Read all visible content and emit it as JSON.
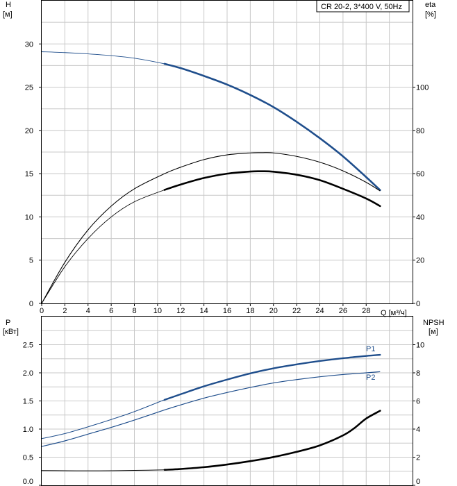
{
  "title": "CR 20-2, 3*400 V, 50Hz",
  "colors": {
    "grid": "#c8c8c8",
    "frame": "#000000",
    "head": "#1f4e8c",
    "power": "#1f4e8c",
    "efficiency": "#000000",
    "npsh": "#000000"
  },
  "chart_data": [
    {
      "type": "line",
      "name": "upper",
      "title": "CR 20-2, 3*400 V, 50Hz",
      "xlabel": "Q [м³/ч]",
      "ylabel": "H",
      "ylabel_unit": "[м]",
      "y2label": "eta",
      "y2label_unit": "[%]",
      "xlim": [
        0,
        32
      ],
      "ylim": [
        0,
        35
      ],
      "y2lim": [
        0,
        140
      ],
      "x_ticks": [
        "0",
        "2",
        "4",
        "6",
        "8",
        "10",
        "12",
        "14",
        "16",
        "18",
        "20",
        "22",
        "24",
        "26",
        "28"
      ],
      "y_ticks": [
        "0",
        "5",
        "10",
        "15",
        "20",
        "25",
        "30"
      ],
      "y2_ticks": [
        "0",
        "20",
        "40",
        "60",
        "80",
        "100"
      ],
      "grid": true,
      "series": [
        {
          "key": "head",
          "axis": "left",
          "x": [
            0,
            2,
            4,
            6,
            8,
            10.6,
            12,
            14,
            16,
            18,
            20,
            22,
            24,
            26,
            28,
            29.2
          ],
          "y": [
            29.1,
            29.0,
            28.85,
            28.65,
            28.35,
            27.7,
            27.2,
            26.3,
            25.3,
            24.1,
            22.7,
            21.0,
            19.1,
            17.0,
            14.6,
            13.1
          ],
          "thick_from": 10.6
        },
        {
          "key": "eta_outer",
          "axis": "right",
          "x": [
            0,
            2,
            4,
            6,
            8,
            10.6,
            12,
            14,
            16,
            18,
            19,
            20,
            22,
            24,
            26,
            28,
            29.2
          ],
          "y": [
            0,
            19,
            34,
            45,
            53,
            60,
            63,
            66.5,
            68.7,
            69.6,
            69.7,
            69.6,
            68.0,
            65.3,
            61.3,
            56.0,
            52.0
          ],
          "thick_from": 10.6,
          "thick": false
        },
        {
          "key": "eta_inner",
          "axis": "right",
          "x": [
            0,
            2,
            4,
            6,
            8,
            10.6,
            12,
            14,
            16,
            18,
            19,
            20,
            22,
            24,
            26,
            28,
            29.2
          ],
          "y": [
            0,
            17,
            30,
            40,
            47,
            52.5,
            55,
            58,
            60,
            61,
            61.1,
            60.9,
            59.5,
            57,
            53,
            48.5,
            45
          ],
          "thick_from": 10.6,
          "thick": true
        }
      ]
    },
    {
      "type": "line",
      "name": "lower",
      "ylabel": "P",
      "ylabel_unit": "[кВт]",
      "y2label": "NPSH",
      "y2label_unit": "[м]",
      "xlim": [
        0,
        32
      ],
      "ylim": [
        0,
        3.0
      ],
      "y2lim": [
        0,
        12
      ],
      "y_ticks": [
        "0.0",
        "0.5",
        "1.0",
        "1.5",
        "2.0",
        "2.5"
      ],
      "y2_ticks": [
        "0",
        "2",
        "4",
        "6",
        "8",
        "10"
      ],
      "grid": true,
      "series": [
        {
          "key": "P1",
          "name": "P1",
          "axis": "left",
          "x": [
            0,
            2,
            4,
            6,
            8,
            10.6,
            12,
            14,
            16,
            18,
            20,
            22,
            24,
            26,
            28,
            29.2
          ],
          "y": [
            0.83,
            0.92,
            1.04,
            1.17,
            1.31,
            1.52,
            1.62,
            1.76,
            1.88,
            1.99,
            2.08,
            2.15,
            2.21,
            2.26,
            2.3,
            2.32
          ],
          "thick_from": 10.6
        },
        {
          "key": "P2",
          "name": "P2",
          "axis": "left",
          "x": [
            0,
            2,
            4,
            6,
            8,
            10.6,
            12,
            14,
            16,
            18,
            20,
            22,
            24,
            26,
            28,
            29.2
          ],
          "y": [
            0.69,
            0.79,
            0.91,
            1.03,
            1.16,
            1.34,
            1.43,
            1.55,
            1.65,
            1.74,
            1.82,
            1.88,
            1.93,
            1.97,
            2.0,
            2.02
          ]
        },
        {
          "key": "NPSH",
          "axis": "right",
          "x": [
            0,
            2,
            4,
            6,
            8,
            10.6,
            12,
            14,
            16,
            18,
            20,
            22,
            24,
            26,
            27,
            28,
            29.2
          ],
          "y": [
            1.05,
            1.04,
            1.03,
            1.04,
            1.06,
            1.1,
            1.16,
            1.29,
            1.48,
            1.72,
            2.01,
            2.38,
            2.84,
            3.55,
            4.08,
            4.75,
            5.3
          ],
          "thick_from": 10.6
        }
      ]
    }
  ]
}
